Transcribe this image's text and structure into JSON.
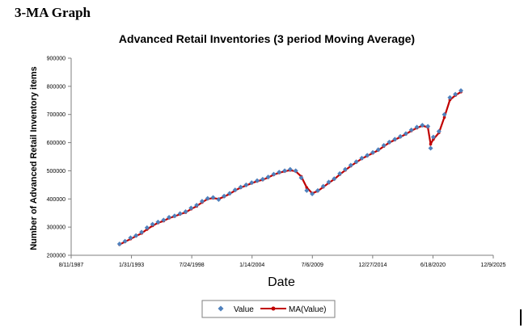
{
  "page": {
    "heading": "3-MA Graph"
  },
  "chart_data": {
    "type": "scatter",
    "title": "Advanced Retail Inventories (3 period Moving Average)",
    "xlabel": "Date",
    "ylabel": "Number of Advanced Retail Inventory items",
    "x_axis_type": "date",
    "xlim": [
      "1987-08-11",
      "2025-12-09"
    ],
    "xticks": [
      "1987-08-11",
      "1993-01-31",
      "1998-07-24",
      "2004-01-14",
      "2009-07-06",
      "2014-12-27",
      "2020-06-18",
      "2025-12-09"
    ],
    "xtick_labels": [
      "8/11/1987",
      "1/31/1993",
      "7/24/1998",
      "1/14/2004",
      "7/6/2009",
      "12/27/2014",
      "6/18/2020",
      "12/9/2025"
    ],
    "ylim": [
      200000,
      900000
    ],
    "yticks": [
      200000,
      300000,
      400000,
      500000,
      600000,
      700000,
      800000,
      900000
    ],
    "grid": false,
    "legend_position": "bottom",
    "series": [
      {
        "name": "Value",
        "marker": "diamond",
        "color": "#4f81bd",
        "x": [
          "1992-01-01",
          "1992-07-01",
          "1993-01-01",
          "1993-07-01",
          "1994-01-01",
          "1994-07-01",
          "1995-01-01",
          "1995-07-01",
          "1996-01-01",
          "1996-07-01",
          "1997-01-01",
          "1997-07-01",
          "1998-01-01",
          "1998-07-01",
          "1999-01-01",
          "1999-07-01",
          "2000-01-01",
          "2000-07-01",
          "2001-01-01",
          "2001-07-01",
          "2002-01-01",
          "2002-07-01",
          "2003-01-01",
          "2003-07-01",
          "2004-01-01",
          "2004-07-01",
          "2005-01-01",
          "2005-07-01",
          "2006-01-01",
          "2006-07-01",
          "2007-01-01",
          "2007-07-01",
          "2008-01-01",
          "2008-07-01",
          "2009-01-01",
          "2009-07-01",
          "2010-01-01",
          "2010-07-01",
          "2011-01-01",
          "2011-07-01",
          "2012-01-01",
          "2012-07-01",
          "2013-01-01",
          "2013-07-01",
          "2014-01-01",
          "2014-07-01",
          "2015-01-01",
          "2015-07-01",
          "2016-01-01",
          "2016-07-01",
          "2017-01-01",
          "2017-07-01",
          "2018-01-01",
          "2018-07-01",
          "2019-01-01",
          "2019-07-01",
          "2020-01-01",
          "2020-04-01",
          "2020-07-01",
          "2021-01-01",
          "2021-07-01",
          "2022-01-01",
          "2022-07-01",
          "2023-01-01"
        ],
        "values": [
          240000,
          250000,
          262000,
          270000,
          282000,
          298000,
          310000,
          318000,
          325000,
          335000,
          340000,
          348000,
          355000,
          368000,
          378000,
          392000,
          402000,
          405000,
          398000,
          410000,
          420000,
          432000,
          442000,
          450000,
          458000,
          465000,
          470000,
          478000,
          488000,
          495000,
          500000,
          505000,
          500000,
          475000,
          430000,
          418000,
          430000,
          445000,
          460000,
          472000,
          490000,
          505000,
          520000,
          532000,
          545000,
          555000,
          565000,
          575000,
          590000,
          602000,
          612000,
          622000,
          632000,
          645000,
          655000,
          662000,
          658000,
          580000,
          620000,
          640000,
          700000,
          760000,
          772000,
          785000
        ]
      },
      {
        "name": "MA(Value)",
        "marker": "circle",
        "color": "#c00000",
        "x": [
          "1992-01-01",
          "1992-07-01",
          "1993-01-01",
          "1993-07-01",
          "1994-01-01",
          "1994-07-01",
          "1995-01-01",
          "1995-07-01",
          "1996-01-01",
          "1996-07-01",
          "1997-01-01",
          "1997-07-01",
          "1998-01-01",
          "1998-07-01",
          "1999-01-01",
          "1999-07-01",
          "2000-01-01",
          "2000-07-01",
          "2001-01-01",
          "2001-07-01",
          "2002-01-01",
          "2002-07-01",
          "2003-01-01",
          "2003-07-01",
          "2004-01-01",
          "2004-07-01",
          "2005-01-01",
          "2005-07-01",
          "2006-01-01",
          "2006-07-01",
          "2007-01-01",
          "2007-07-01",
          "2008-01-01",
          "2008-07-01",
          "2009-01-01",
          "2009-07-01",
          "2010-01-01",
          "2010-07-01",
          "2011-01-01",
          "2011-07-01",
          "2012-01-01",
          "2012-07-01",
          "2013-01-01",
          "2013-07-01",
          "2014-01-01",
          "2014-07-01",
          "2015-01-01",
          "2015-07-01",
          "2016-01-01",
          "2016-07-01",
          "2017-01-01",
          "2017-07-01",
          "2018-01-01",
          "2018-07-01",
          "2019-01-01",
          "2019-07-01",
          "2020-01-01",
          "2020-04-01",
          "2020-07-01",
          "2021-01-01",
          "2021-07-01",
          "2022-01-01",
          "2022-07-01",
          "2023-01-01"
        ],
        "values": [
          238000,
          248000,
          258000,
          268000,
          278000,
          292000,
          305000,
          315000,
          322000,
          332000,
          338000,
          346000,
          352000,
          364000,
          374000,
          388000,
          400000,
          403000,
          400000,
          408000,
          418000,
          430000,
          440000,
          448000,
          456000,
          463000,
          468000,
          476000,
          486000,
          493000,
          498000,
          502000,
          498000,
          480000,
          440000,
          420000,
          428000,
          442000,
          457000,
          470000,
          487000,
          502000,
          517000,
          530000,
          543000,
          553000,
          563000,
          573000,
          587000,
          600000,
          610000,
          620000,
          630000,
          642000,
          652000,
          660000,
          655000,
          595000,
          612000,
          635000,
          690000,
          752000,
          768000,
          780000
        ]
      }
    ]
  }
}
